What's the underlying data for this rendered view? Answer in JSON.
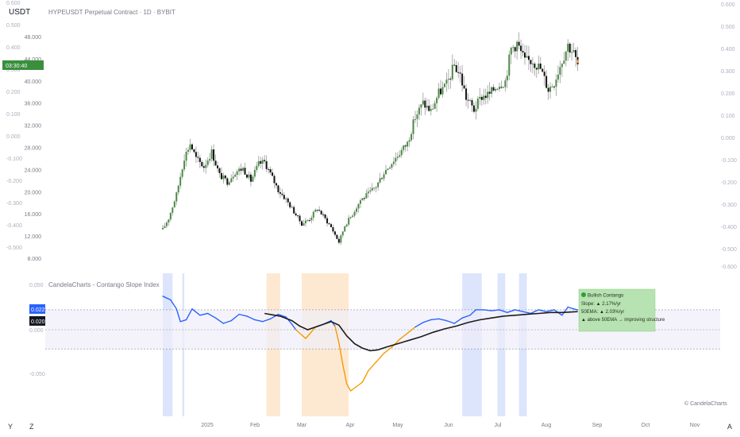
{
  "header": {
    "currency": "USDT",
    "symbol_title": "HYPEUSDT Perpetual Contract · 1D · BYBIT"
  },
  "bottom_bar": {
    "left_a": "Y",
    "left_b": "Z",
    "right": "A"
  },
  "watermark": "© CandelaCharts",
  "colors": {
    "up_body": "#4a8a43",
    "down_body": "#111111",
    "wick": "#9a9a9a",
    "slope_line": "#2962ff",
    "slope_negative": "#f59b00",
    "ema_line": "#1c1c1c",
    "blue_band": "#dbe4fc",
    "orange_band": "#fde8cf",
    "zone_fill": "#efeefa",
    "info_bg": "#b7e2b1",
    "price_badge": "#3a8f3d"
  },
  "chart_data": [
    {
      "type": "candlestick",
      "title": "HYPEUSDT Perpetual Contract · 1D · BYBIT",
      "currency": "USDT",
      "x_axis_labels": [
        "2025",
        "Feb",
        "Mar",
        "Apr",
        "May",
        "Jun",
        "Jul",
        "Aug",
        "Sep",
        "Oct",
        "Nov"
      ],
      "y_left_ticks": [
        "48.000",
        "44.000",
        "40.000",
        "36.000",
        "32.000",
        "28.000",
        "24.000",
        "20.000",
        "16.000",
        "12.000",
        "8.000"
      ],
      "y_left_range": [
        8,
        50
      ],
      "left_scale_overlay_ticks": [
        "0.600",
        "0.500",
        "0.400",
        "0.300",
        "0.200",
        "0.100",
        "0.000",
        "-0.100",
        "-0.200",
        "-0.300",
        "-0.400",
        "-0.500"
      ],
      "y_right_ticks": [
        "0.600",
        "0.500",
        "0.400",
        "0.300",
        "0.200",
        "0.100",
        "0.000",
        "-0.100",
        "-0.200",
        "-0.300",
        "-0.400",
        "-0.500",
        "-0.600"
      ],
      "current_price_badge": "03:30:40",
      "close_series_anchors": [
        {
          "t": 0,
          "close": 13.2
        },
        {
          "t": 3,
          "close": 15.2
        },
        {
          "t": 7,
          "close": 19.5
        },
        {
          "t": 11,
          "close": 26.2
        },
        {
          "t": 14,
          "close": 28.7
        },
        {
          "t": 17,
          "close": 26.0
        },
        {
          "t": 21,
          "close": 24.5
        },
        {
          "t": 25,
          "close": 27.2
        },
        {
          "t": 29,
          "close": 23.0
        },
        {
          "t": 33,
          "close": 21.8
        },
        {
          "t": 37,
          "close": 23.6
        },
        {
          "t": 41,
          "close": 24.2
        },
        {
          "t": 45,
          "close": 22.0
        },
        {
          "t": 49,
          "close": 25.0
        },
        {
          "t": 52,
          "close": 25.4
        },
        {
          "t": 55,
          "close": 23.2
        },
        {
          "t": 59,
          "close": 20.3
        },
        {
          "t": 63,
          "close": 18.6
        },
        {
          "t": 67,
          "close": 16.4
        },
        {
          "t": 71,
          "close": 14.2
        },
        {
          "t": 75,
          "close": 15.1
        },
        {
          "t": 79,
          "close": 17.0
        },
        {
          "t": 82,
          "close": 15.6
        },
        {
          "t": 86,
          "close": 13.6
        },
        {
          "t": 90,
          "close": 10.9
        },
        {
          "t": 93,
          "close": 13.9
        },
        {
          "t": 97,
          "close": 16.0
        },
        {
          "t": 101,
          "close": 18.5
        },
        {
          "t": 105,
          "close": 19.6
        },
        {
          "t": 109,
          "close": 21.0
        },
        {
          "t": 113,
          "close": 23.5
        },
        {
          "t": 117,
          "close": 25.3
        },
        {
          "t": 121,
          "close": 27.0
        },
        {
          "t": 125,
          "close": 28.8
        },
        {
          "t": 129,
          "close": 33.5
        },
        {
          "t": 133,
          "close": 36.0
        },
        {
          "t": 137,
          "close": 34.5
        },
        {
          "t": 141,
          "close": 37.8
        },
        {
          "t": 145,
          "close": 39.3
        },
        {
          "t": 149,
          "close": 42.8
        },
        {
          "t": 152,
          "close": 41.0
        },
        {
          "t": 155,
          "close": 37.0
        },
        {
          "t": 159,
          "close": 34.8
        },
        {
          "t": 163,
          "close": 37.2
        },
        {
          "t": 167,
          "close": 37.6
        },
        {
          "t": 171,
          "close": 39.3
        },
        {
          "t": 175,
          "close": 40.0
        },
        {
          "t": 178,
          "close": 45.8
        },
        {
          "t": 181,
          "close": 46.8
        },
        {
          "t": 185,
          "close": 43.5
        },
        {
          "t": 189,
          "close": 43.7
        },
        {
          "t": 193,
          "close": 42.2
        },
        {
          "t": 197,
          "close": 38.5
        },
        {
          "t": 200,
          "close": 39.8
        },
        {
          "t": 204,
          "close": 43.8
        },
        {
          "t": 207,
          "close": 46.5
        },
        {
          "t": 210,
          "close": 45.0
        },
        {
          "t": 212,
          "close": 42.8
        }
      ]
    },
    {
      "type": "line",
      "title": "CandelaCharts - Contango Slope Index",
      "y_ticks": [
        "0.050",
        "0.000",
        "-0.050"
      ],
      "y_range": [
        -0.07,
        0.05
      ],
      "value_badges": [
        "0.022",
        "0.020"
      ],
      "series": [
        {
          "values_by_t": [
            [
              0,
              0.037
            ],
            [
              4,
              0.033
            ],
            [
              7,
              0.023
            ],
            [
              9,
              0.009
            ],
            [
              12,
              0.011
            ],
            [
              15,
              0.023
            ],
            [
              19,
              0.016
            ],
            [
              23,
              0.018
            ],
            [
              27,
              0.013
            ],
            [
              31,
              0.007
            ],
            [
              35,
              0.01
            ],
            [
              39,
              0.017
            ],
            [
              43,
              0.015
            ],
            [
              47,
              0.011
            ],
            [
              51,
              0.009
            ],
            [
              55,
              0.012
            ],
            [
              59,
              0.017
            ],
            [
              63,
              0.014
            ],
            [
              66,
              0.006
            ],
            [
              68,
              0.0
            ],
            [
              71,
              -0.006
            ],
            [
              73,
              -0.01
            ],
            [
              75,
              -0.005
            ],
            [
              78,
              0.003
            ],
            [
              82,
              0.006
            ],
            [
              86,
              0.01
            ],
            [
              88,
              0.004
            ],
            [
              90,
              -0.015
            ],
            [
              92,
              -0.04
            ],
            [
              94,
              -0.062
            ],
            [
              96,
              -0.07
            ],
            [
              99,
              -0.065
            ],
            [
              102,
              -0.06
            ],
            [
              105,
              -0.047
            ],
            [
              109,
              -0.037
            ],
            [
              113,
              -0.027
            ],
            [
              117,
              -0.02
            ],
            [
              121,
              -0.011
            ],
            [
              125,
              -0.004
            ],
            [
              129,
              0.003
            ],
            [
              133,
              0.008
            ],
            [
              137,
              0.011
            ],
            [
              141,
              0.012
            ],
            [
              145,
              0.01
            ],
            [
              149,
              0.007
            ],
            [
              153,
              0.013
            ],
            [
              157,
              0.016
            ],
            [
              160,
              0.022
            ],
            [
              164,
              0.022
            ],
            [
              168,
              0.021
            ],
            [
              172,
              0.022
            ],
            [
              176,
              0.019
            ],
            [
              180,
              0.022
            ],
            [
              184,
              0.02
            ],
            [
              188,
              0.018
            ],
            [
              192,
              0.022
            ],
            [
              196,
              0.02
            ],
            [
              200,
              0.022
            ],
            [
              204,
              0.016
            ],
            [
              207,
              0.025
            ],
            [
              210,
              0.023
            ],
            [
              212,
              0.022
            ]
          ]
        },
        {
          "values_by_t": [
            [
              52,
              0.018
            ],
            [
              60,
              0.015
            ],
            [
              66,
              0.01
            ],
            [
              70,
              0.004
            ],
            [
              74,
              0.0
            ],
            [
              78,
              0.003
            ],
            [
              82,
              0.006
            ],
            [
              86,
              0.009
            ],
            [
              90,
              0.005
            ],
            [
              94,
              -0.007
            ],
            [
              98,
              -0.016
            ],
            [
              102,
              -0.021
            ],
            [
              106,
              -0.024
            ],
            [
              110,
              -0.023
            ],
            [
              114,
              -0.02
            ],
            [
              120,
              -0.016
            ],
            [
              126,
              -0.012
            ],
            [
              132,
              -0.008
            ],
            [
              138,
              -0.003
            ],
            [
              144,
              0.001
            ],
            [
              150,
              0.004
            ],
            [
              156,
              0.008
            ],
            [
              162,
              0.011
            ],
            [
              168,
              0.013
            ],
            [
              174,
              0.015
            ],
            [
              180,
              0.016
            ],
            [
              186,
              0.017
            ],
            [
              192,
              0.018
            ],
            [
              198,
              0.019
            ],
            [
              204,
              0.019
            ],
            [
              212,
              0.02
            ]
          ]
        }
      ],
      "shaded_periods": [
        {
          "from": 0,
          "to": 5,
          "color": "blue"
        },
        {
          "from": 10,
          "to": 11,
          "color": "blue"
        },
        {
          "from": 53,
          "to": 60,
          "color": "orange"
        },
        {
          "from": 71,
          "to": 95,
          "color": "orange"
        },
        {
          "from": 153,
          "to": 163,
          "color": "blue"
        },
        {
          "from": 171,
          "to": 175,
          "color": "blue"
        },
        {
          "from": 182,
          "to": 186,
          "color": "blue"
        }
      ],
      "info_box": {
        "status": "Bullish Contango",
        "slope": "Slope: ▲ 2.17%/yr",
        "ema": "50EMA: ▲ 2.03%/yr",
        "note": "▲ above 50EMA → improving structure"
      }
    }
  ]
}
